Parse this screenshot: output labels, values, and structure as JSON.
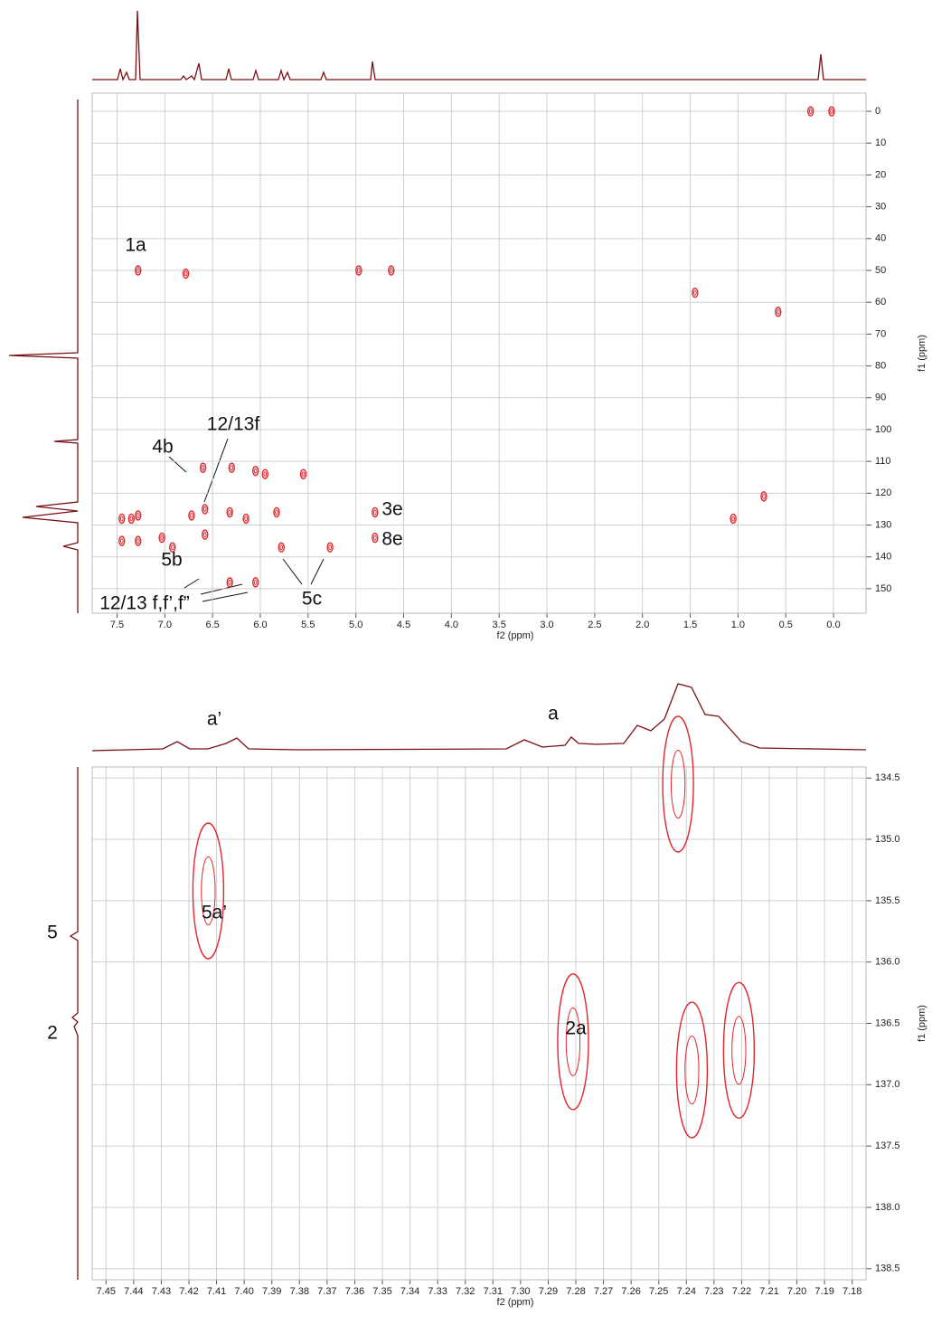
{
  "chart_data": [
    {
      "type": "contour",
      "xlabel": "f2 (ppm)",
      "ylabel": "f1 (ppm)",
      "color": "#e0282c",
      "grid": true,
      "xlim": [
        7.76,
        -0.34
      ],
      "ylim": [
        -5.7,
        157.7
      ],
      "xticks": [
        7.5,
        {
          "value": 7,
          "label": "7.0"
        },
        6.5,
        {
          "value": 6,
          "label": "6.0"
        },
        5.5,
        {
          "value": 5,
          "label": "5.0"
        },
        4.5,
        {
          "value": 4,
          "label": "4.0"
        },
        3.5,
        {
          "value": 3,
          "label": "3.0"
        },
        2.5,
        {
          "value": 2,
          "label": "2.0"
        },
        1.5,
        {
          "value": 1,
          "label": "1.0"
        },
        0.5,
        {
          "value": 0,
          "label": "0.0"
        }
      ],
      "yticks": [
        0,
        10,
        20,
        30,
        40,
        50,
        60,
        70,
        80,
        90,
        100,
        110,
        120,
        130,
        140,
        150
      ],
      "x": [
        7.28,
        6.78,
        4.97,
        4.63,
        0.24,
        0.02,
        7.28,
        7.28,
        7.45,
        7.45,
        7.35,
        6.58,
        6.58,
        6.32,
        6.32,
        6.05,
        6.05,
        5.83,
        5.78,
        5.55,
        5.27,
        4.8,
        4.8,
        6.6,
        6.72,
        6.15,
        7.03,
        6.92,
        5.95,
        6.3,
        1.05,
        0.73,
        1.45,
        0.58
      ],
      "y": [
        50,
        51,
        50,
        50,
        0,
        0,
        127,
        135,
        128,
        135,
        128,
        125,
        133,
        126,
        148,
        113,
        148,
        126,
        137,
        114,
        137,
        126,
        134,
        112,
        127,
        128,
        134,
        137,
        114,
        112,
        128,
        121,
        57,
        63
      ],
      "annotations": [
        "1a",
        "4b",
        "12/13f",
        "3e",
        "8e",
        "5b",
        "5c",
        "12/13 f,f’,f”"
      ]
    },
    {
      "type": "contour",
      "xlabel": "f2 (ppm)",
      "ylabel": "f1 (ppm)",
      "color": "#e0282c",
      "grid": true,
      "xlim": [
        7.455,
        7.175
      ],
      "ylim": [
        134.41,
        138.59
      ],
      "xticks": [
        7.45,
        7.44,
        7.43,
        7.42,
        7.41,
        {
          "value": 7.4,
          "label": "7.40"
        },
        7.39,
        7.38,
        7.37,
        7.36,
        7.35,
        7.34,
        7.33,
        7.32,
        7.31,
        {
          "value": 7.3,
          "label": "7.30"
        },
        7.29,
        7.28,
        7.27,
        7.26,
        7.25,
        7.24,
        7.23,
        7.22,
        7.21,
        {
          "value": 7.2,
          "label": "7.20"
        },
        7.19,
        7.18
      ],
      "yticks": [
        134.5,
        {
          "value": 135,
          "label": "135.0"
        },
        135.5,
        {
          "value": 136,
          "label": "136.0"
        },
        136.5,
        {
          "value": 137,
          "label": "137.0"
        },
        137.5,
        {
          "value": 138,
          "label": "138.0"
        },
        138.5
      ],
      "x": [
        7.413,
        7.281,
        7.238,
        7.221,
        7.243
      ],
      "y": [
        135.42,
        136.65,
        136.88,
        136.72,
        134.55
      ],
      "annotations": [
        "a’",
        "a",
        "5a’",
        "2a",
        "5",
        "2"
      ]
    }
  ]
}
